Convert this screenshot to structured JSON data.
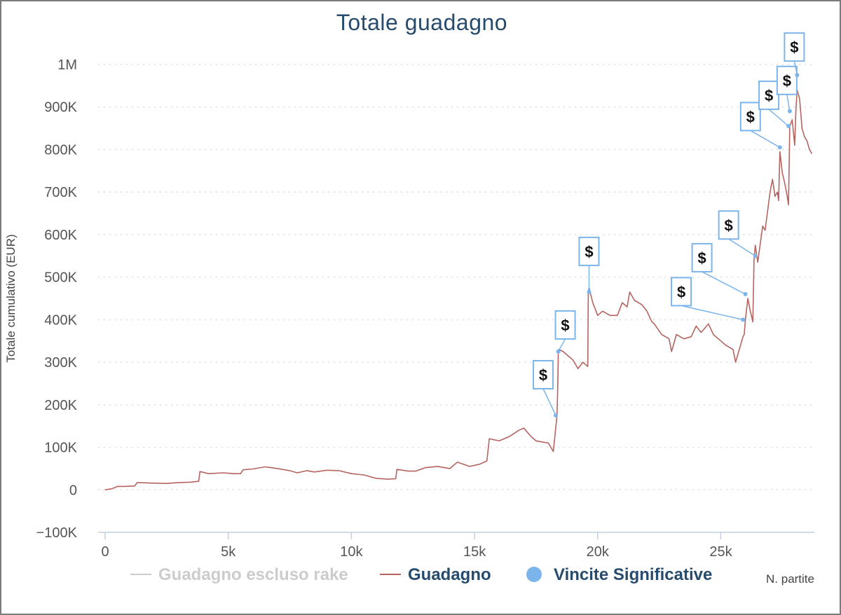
{
  "chart_data": {
    "type": "line",
    "title": "Totale guadagno",
    "xlabel": "N. partite",
    "ylabel": "Totale cumulativo (EUR)",
    "xlim": [
      0,
      28800
    ],
    "ylim": [
      -100000,
      1000000
    ],
    "x_ticks": [
      0,
      5000,
      10000,
      15000,
      20000,
      25000
    ],
    "x_tick_labels": [
      "0",
      "5k",
      "10k",
      "15k",
      "20k",
      "25k"
    ],
    "y_ticks": [
      -100000,
      0,
      100000,
      200000,
      300000,
      400000,
      500000,
      600000,
      700000,
      800000,
      900000,
      1000000
    ],
    "y_tick_labels": [
      "−100K",
      "0",
      "100K",
      "200K",
      "300K",
      "400K",
      "500K",
      "600K",
      "700K",
      "800K",
      "900K",
      "1M"
    ],
    "grid": true,
    "legend_position": "bottom-center",
    "series": [
      {
        "name": "Guadagno escluso rake",
        "color": "#cccccc",
        "hidden": true,
        "x": [],
        "y": []
      },
      {
        "name": "Guadagno",
        "color": "#b56460",
        "x": [
          0,
          300,
          500,
          800,
          1200,
          1300,
          1800,
          2500,
          3000,
          3500,
          3800,
          3850,
          4200,
          4800,
          5200,
          5500,
          5600,
          6000,
          6500,
          7000,
          7500,
          7800,
          8200,
          8500,
          9000,
          9500,
          10000,
          10500,
          11000,
          11500,
          11800,
          11850,
          12300,
          12600,
          13000,
          13500,
          14000,
          14300,
          14800,
          15200,
          15500,
          15600,
          16000,
          16400,
          16800,
          17000,
          17300,
          17500,
          17800,
          18000,
          18200,
          18350,
          18380,
          18400,
          18420,
          18600,
          18800,
          19000,
          19200,
          19400,
          19600,
          19620,
          19650,
          19800,
          20000,
          20200,
          20500,
          20800,
          21000,
          21200,
          21300,
          21500,
          21800,
          22000,
          22200,
          22300,
          22600,
          22900,
          23000,
          23200,
          23500,
          23800,
          24000,
          24200,
          24500,
          24700,
          25000,
          25200,
          25500,
          25600,
          25800,
          25900,
          25950,
          26000,
          26100,
          26200,
          26300,
          26350,
          26400,
          26500,
          26700,
          26800,
          27000,
          27100,
          27200,
          27300,
          27350,
          27400,
          27500,
          27600,
          27700,
          27750,
          27800,
          27900,
          28000,
          28050,
          28100,
          28200,
          28300,
          28400,
          28500,
          28600,
          28700
        ],
        "y": [
          0,
          3000,
          8000,
          8000,
          9000,
          17000,
          16000,
          15000,
          17000,
          18000,
          20000,
          43000,
          38000,
          40000,
          38000,
          38000,
          47000,
          49000,
          54000,
          50000,
          45000,
          40000,
          45000,
          42000,
          46000,
          45000,
          38000,
          35000,
          27000,
          25000,
          26000,
          48000,
          44000,
          44000,
          52000,
          55000,
          50000,
          65000,
          55000,
          60000,
          68000,
          120000,
          115000,
          125000,
          140000,
          145000,
          125000,
          115000,
          112000,
          110000,
          90000,
          175000,
          250000,
          320000,
          330000,
          325000,
          315000,
          305000,
          285000,
          300000,
          290000,
          465000,
          475000,
          440000,
          410000,
          420000,
          410000,
          410000,
          440000,
          430000,
          465000,
          445000,
          435000,
          420000,
          395000,
          390000,
          365000,
          355000,
          325000,
          365000,
          355000,
          360000,
          385000,
          370000,
          390000,
          365000,
          350000,
          340000,
          330000,
          300000,
          340000,
          360000,
          365000,
          400000,
          450000,
          420000,
          395000,
          540000,
          575000,
          535000,
          620000,
          610000,
          700000,
          730000,
          690000,
          700000,
          680000,
          795000,
          745000,
          720000,
          690000,
          670000,
          855000,
          870000,
          810000,
          890000,
          940000,
          920000,
          850000,
          830000,
          820000,
          800000,
          790000
        ]
      },
      {
        "name": "Vincite Significative",
        "color": "#7cb5ec",
        "type": "scatter",
        "x": [
          18300,
          18400,
          19650,
          25900,
          26000,
          26400,
          27400,
          27750,
          27800,
          28100
        ],
        "y": [
          175000,
          325000,
          465000,
          400000,
          460000,
          550000,
          805000,
          855000,
          890000,
          975000
        ]
      }
    ],
    "annotations": [
      {
        "x": 18300,
        "label": "$"
      },
      {
        "x": 18400,
        "label": "$"
      },
      {
        "x": 19650,
        "label": "$"
      },
      {
        "x": 25900,
        "label": "$"
      },
      {
        "x": 26000,
        "label": "$"
      },
      {
        "x": 26400,
        "label": "$"
      },
      {
        "x": 27400,
        "label": "$"
      },
      {
        "x": 27750,
        "label": "$"
      },
      {
        "x": 27800,
        "label": "$"
      },
      {
        "x": 28100,
        "label": "$"
      }
    ]
  }
}
